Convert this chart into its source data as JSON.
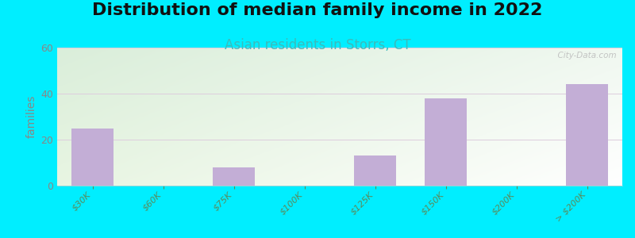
{
  "title": "Distribution of median family income in 2022",
  "subtitle": "Asian residents in Storrs, CT",
  "categories": [
    "$30K",
    "$60K",
    "$75K",
    "$100K",
    "$125K",
    "$150K",
    "$200K",
    "> $200K"
  ],
  "values": [
    25,
    0,
    8,
    0,
    13,
    38,
    0,
    44
  ],
  "bar_color": "#c3aed6",
  "ylabel": "families",
  "ylim": [
    0,
    60
  ],
  "yticks": [
    0,
    20,
    40,
    60
  ],
  "background_outer": "#00eeff",
  "background_plot_top_left": "#daeeda",
  "background_plot_top_right": "#f0f8f0",
  "background_plot_bottom_left": "#e8f5e2",
  "background_plot_bottom_right": "#ffffff",
  "title_fontsize": 16,
  "subtitle_fontsize": 12,
  "subtitle_color": "#3abcbc",
  "watermark": "  City-Data.com",
  "grid_color": "#ddccdd",
  "ytick_label_color": "#888888",
  "xtick_label_color": "#5a8a5a",
  "tick_label_fontsize": 8.0,
  "ylabel_color": "#888888",
  "ylabel_fontsize": 10
}
